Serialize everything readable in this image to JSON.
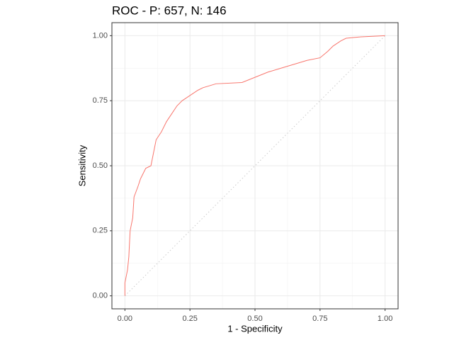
{
  "chart_data": {
    "type": "line",
    "title": "ROC - P: 657, N: 146",
    "x_label": "1 - Specificity",
    "y_label": "Sensitivity",
    "xlim": [
      -0.05,
      1.05
    ],
    "ylim": [
      -0.05,
      1.05
    ],
    "xticks": [
      {
        "value": 0,
        "label": "0.00"
      },
      {
        "value": 0.25,
        "label": "0.25"
      },
      {
        "value": 0.5,
        "label": "0.50"
      },
      {
        "value": 0.75,
        "label": "0.75"
      },
      {
        "value": 1,
        "label": "1.00"
      }
    ],
    "yticks": [
      {
        "value": 0,
        "label": "0.00"
      },
      {
        "value": 0.25,
        "label": "0.25"
      },
      {
        "value": 0.5,
        "label": "0.50"
      },
      {
        "value": 0.75,
        "label": "0.75"
      },
      {
        "value": 1,
        "label": "1.00"
      }
    ],
    "grid": true,
    "x": [
      0,
      0,
      0.01,
      0.015,
      0.02,
      0.03,
      0.035,
      0.05,
      0.06,
      0.08,
      0.1,
      0.11,
      0.12,
      0.14,
      0.16,
      0.18,
      0.2,
      0.22,
      0.25,
      0.28,
      0.3,
      0.35,
      0.45,
      0.5,
      0.55,
      0.6,
      0.65,
      0.7,
      0.75,
      0.78,
      0.8,
      0.83,
      0.85,
      0.9,
      1
    ],
    "series": [
      {
        "color": "#F8766D",
        "values": [
          0,
          0.05,
          0.1,
          0.15,
          0.25,
          0.3,
          0.38,
          0.42,
          0.45,
          0.49,
          0.5,
          0.55,
          0.6,
          0.63,
          0.67,
          0.7,
          0.73,
          0.75,
          0.77,
          0.79,
          0.8,
          0.815,
          0.82,
          0.84,
          0.86,
          0.875,
          0.89,
          0.905,
          0.915,
          0.94,
          0.96,
          0.98,
          0.99,
          0.995,
          1
        ]
      }
    ]
  }
}
